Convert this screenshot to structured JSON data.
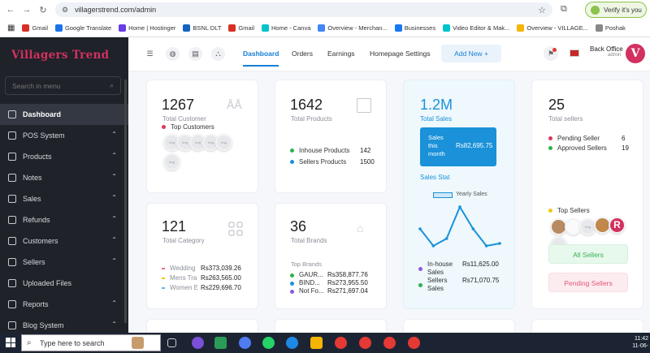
{
  "browser": {
    "url": "villagerstrend.com/admin",
    "verify_label": "Verify it's you",
    "bookmarks": [
      {
        "label": "Gmail",
        "color": "#d93025"
      },
      {
        "label": "Google Translate",
        "color": "#1a73e8"
      },
      {
        "label": "Home | Hostinger",
        "color": "#673de6"
      },
      {
        "label": "BSNL DLT",
        "color": "#1565c0"
      },
      {
        "label": "Gmail",
        "color": "#d93025"
      },
      {
        "label": "Home - Canva",
        "color": "#00c4cc"
      },
      {
        "label": "Overview - Merchan...",
        "color": "#4285f4"
      },
      {
        "label": "Businesses",
        "color": "#1877f2"
      },
      {
        "label": "Video Editor & Mak...",
        "color": "#00c4cc"
      },
      {
        "label": "Overview - VILLAGE...",
        "color": "#f4b400"
      },
      {
        "label": "Poshak",
        "color": "#888888"
      }
    ]
  },
  "sidebar": {
    "logo": "Villagers Trend",
    "search_placeholder": "Search in menu",
    "items": [
      {
        "label": "Dashboard",
        "active": true,
        "chevron": false
      },
      {
        "label": "POS System",
        "chevron": true
      },
      {
        "label": "Products",
        "chevron": true
      },
      {
        "label": "Notes",
        "chevron": true
      },
      {
        "label": "Sales",
        "chevron": true
      },
      {
        "label": "Refunds",
        "chevron": true
      },
      {
        "label": "Customers",
        "chevron": true
      },
      {
        "label": "Sellers",
        "chevron": true
      },
      {
        "label": "Uploaded Files",
        "chevron": false
      },
      {
        "label": "Reports",
        "chevron": true
      },
      {
        "label": "Blog System",
        "chevron": true
      }
    ]
  },
  "topbar": {
    "tabs": [
      "Dashboard",
      "Orders",
      "Earnings",
      "Homepage Settings"
    ],
    "add_new": "Add New",
    "user_name": "Back Office",
    "user_role": "admin",
    "avatar_letter": "V"
  },
  "cards": {
    "customers": {
      "value": "1267",
      "label": "Total Customer",
      "top_label": "Top Customers",
      "avatar_text": "Img"
    },
    "products": {
      "value": "1642",
      "label": "Total Products",
      "rows": [
        {
          "label": "Inhouse Products",
          "value": "142",
          "color": "#2db34a"
        },
        {
          "label": "Sellers Products",
          "value": "1500",
          "color": "#1a91d8"
        }
      ]
    },
    "sales": {
      "value": "1.2M",
      "label": "Total Sales",
      "box_label": "Sales this month",
      "box_value": "Rs82,695.75",
      "stat_label": "Sales Stat",
      "legend": "Yearly Sales",
      "rows": [
        {
          "label": "In-house Sales",
          "value": "Rs11,625.00",
          "color": "#8e5ad8"
        },
        {
          "label": "Sellers Sales",
          "value": "Rs71,070.75",
          "color": "#2db34a"
        }
      ]
    },
    "sellers": {
      "value": "25",
      "label": "Total sellers",
      "rows": [
        {
          "label": "Pending Seller",
          "value": "6",
          "color": "#e0375d"
        },
        {
          "label": "Approved Sellers",
          "value": "19",
          "color": "#2db34a"
        }
      ],
      "top_label": "Top Sellers",
      "top_color": "#f5c518",
      "all_btn": "All Sellers",
      "pending_btn": "Pending Sellers",
      "avatar_text": "Img"
    },
    "category": {
      "value": "121",
      "label": "Total Category",
      "rows": [
        {
          "label": "Wedding",
          "value": "Rs373,039.26",
          "color": "#e8708a"
        },
        {
          "label": "Mens Tra",
          "value": "Rs263,565.00",
          "color": "#f5c518"
        },
        {
          "label": "Women E",
          "value": "Rs229,696.70",
          "color": "#5bb6e6"
        }
      ]
    },
    "brands": {
      "value": "36",
      "label": "Total Brands",
      "top_label": "Top Brands",
      "rows": [
        {
          "label": "GAUR...",
          "value": "Rs358,877.76",
          "color": "#2db34a"
        },
        {
          "label": "BIND...",
          "value": "Rs273,955.50",
          "color": "#1a91d8"
        },
        {
          "label": "Not Fo...",
          "value": "Rs271,697.04",
          "color": "#8e5ad8"
        }
      ]
    }
  },
  "chart_data": {
    "type": "line",
    "series": [
      {
        "name": "Yearly Sales",
        "values": [
          1.6,
          0.9,
          1.2,
          2.5,
          1.6,
          0.9,
          1.0
        ]
      }
    ],
    "color": "#1a91d8"
  },
  "taskbar": {
    "search_placeholder": "Type here to search",
    "time": "11:42",
    "date": "11-06-"
  }
}
